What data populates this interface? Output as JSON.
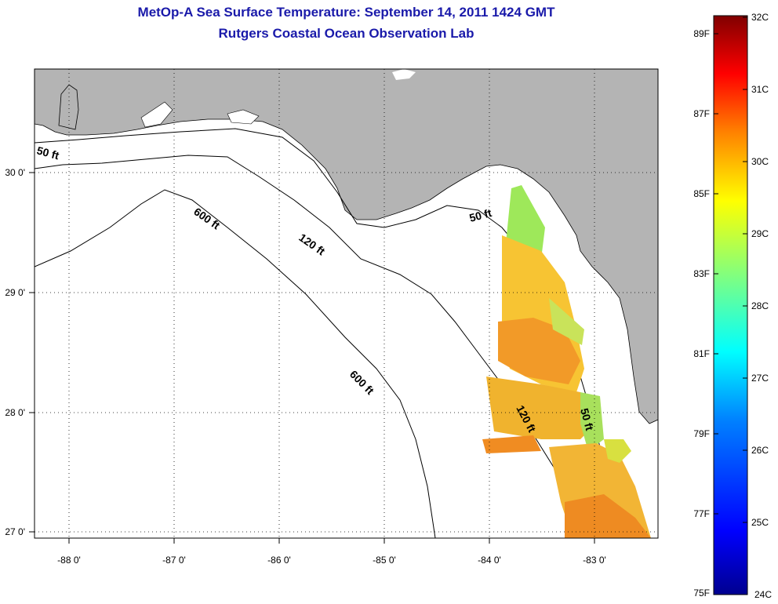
{
  "title": "MetOp-A Sea Surface Temperature:  September 14, 2011 1424 GMT",
  "subtitle": "Rutgers Coastal Ocean Observation Lab",
  "map": {
    "lon_labels": [
      "-88 0'",
      "-87 0'",
      "-86 0'",
      "-85 0'",
      "-84 0'",
      "-83 0'"
    ],
    "lat_labels": [
      "30 0'",
      "29 0'",
      "28 0'",
      "27 0'"
    ],
    "contour_labels": [
      {
        "id": "c50-west",
        "text": "50 ft"
      },
      {
        "id": "c600-north",
        "text": "600 ft"
      },
      {
        "id": "c120-north",
        "text": "120 ft"
      },
      {
        "id": "c50-north",
        "text": "50 ft"
      },
      {
        "id": "c600-south",
        "text": "600 ft"
      },
      {
        "id": "c120-south",
        "text": "120 ft"
      },
      {
        "id": "c50-south",
        "text": "50 ft"
      }
    ],
    "land_color": "#b4b4b4",
    "water_color": "#ffffff"
  },
  "colorbar": {
    "f_labels": [
      "89F",
      "87F",
      "85F",
      "83F",
      "81F",
      "79F",
      "77F",
      "75F"
    ],
    "c_labels": [
      "32C",
      "31C",
      "30C",
      "29C",
      "28C",
      "27C",
      "26C",
      "25C",
      "24C"
    ],
    "colors": [
      "#00008f",
      "#0000ff",
      "#0080ff",
      "#00ffff",
      "#80ff80",
      "#ffff00",
      "#ff8000",
      "#ff0000",
      "#800000"
    ]
  }
}
